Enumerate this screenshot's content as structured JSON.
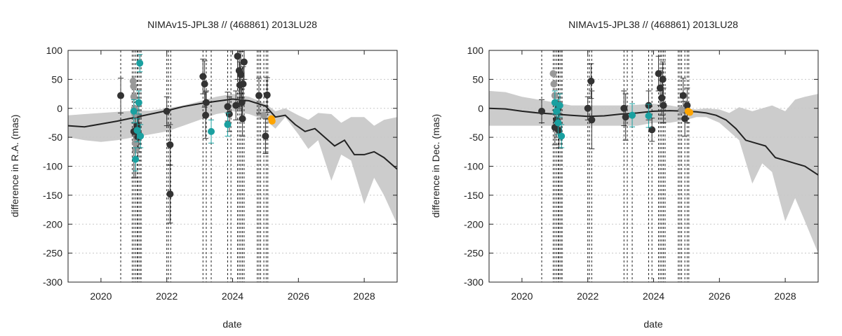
{
  "chart_data": [
    {
      "type": "scatter",
      "title": "NIMAv15-JPL38 // (468861) 2013LU28",
      "xlabel": "date",
      "ylabel": "difference in R.A. (mas)",
      "xlim": [
        2019.0,
        2029.0
      ],
      "ylim": [
        -300,
        100
      ],
      "xticks": [
        2020,
        2022,
        2024,
        2026,
        2028
      ],
      "yticks": [
        100,
        50,
        0,
        -50,
        -100,
        -150,
        -200,
        -250,
        -300
      ],
      "grid": true,
      "colors": {
        "dark": "#333333",
        "gray": "#999999",
        "teal": "#1aa0a0",
        "orange": "#ffa500",
        "band": "#cccccc",
        "curve": "#222222"
      },
      "band": {
        "x": [
          2019.0,
          2019.5,
          2020.0,
          2020.5,
          2021.0,
          2021.5,
          2022.0,
          2022.5,
          2023.0,
          2023.5,
          2024.0,
          2024.5,
          2025.0,
          2025.3,
          2025.6,
          2026.0,
          2026.3,
          2026.6,
          2027.0,
          2027.3,
          2027.6,
          2028.0,
          2028.3,
          2028.6,
          2029.0
        ],
        "upper": [
          -12,
          -10,
          -8,
          -6,
          -4,
          -4,
          0,
          5,
          12,
          20,
          25,
          20,
          8,
          -5,
          0,
          -12,
          -20,
          -8,
          -10,
          -25,
          -15,
          -15,
          -30,
          -20,
          -15
        ],
        "lower": [
          -50,
          -55,
          -58,
          -55,
          -50,
          -45,
          -40,
          -30,
          -20,
          -10,
          -5,
          -10,
          -20,
          -35,
          -15,
          -45,
          -70,
          -55,
          -125,
          -80,
          -90,
          -165,
          -120,
          -150,
          -200
        ]
      },
      "curve": {
        "x": [
          2019.0,
          2019.5,
          2020.0,
          2020.5,
          2021.0,
          2021.5,
          2022.0,
          2022.5,
          2023.0,
          2023.5,
          2024.0,
          2024.5,
          2025.0,
          2025.3,
          2025.6,
          2025.9,
          2026.2,
          2026.5,
          2026.8,
          2027.1,
          2027.4,
          2027.7,
          2028.0,
          2028.3,
          2028.6,
          2029.0
        ],
        "y": [
          -30,
          -32,
          -27,
          -22,
          -16,
          -10,
          -4,
          3,
          8,
          12,
          16,
          13,
          4,
          -15,
          -12,
          -28,
          -40,
          -35,
          -50,
          -65,
          -55,
          -80,
          -80,
          -75,
          -85,
          -105
        ]
      },
      "vlines": [
        2020.6,
        2020.95,
        2021.0,
        2021.05,
        2021.1,
        2021.13,
        2021.18,
        2021.22,
        2022.0,
        2022.05,
        2022.12,
        2023.1,
        2023.2,
        2023.35,
        2023.85,
        2023.95,
        2024.15,
        2024.2,
        2024.25,
        2024.3,
        2024.35,
        2024.75,
        2024.8,
        2024.85,
        2024.95,
        2025.02,
        2025.07
      ],
      "series": [
        {
          "name": "dark",
          "points": [
            {
              "x": 2020.6,
              "y": 22,
              "err": 30
            },
            {
              "x": 2021.0,
              "y": -40,
              "err": 80
            },
            {
              "x": 2021.05,
              "y": -60,
              "err": 60
            },
            {
              "x": 2021.1,
              "y": -30,
              "err": 40
            },
            {
              "x": 2021.12,
              "y": -50,
              "err": 40
            },
            {
              "x": 2021.15,
              "y": -45,
              "err": 30
            },
            {
              "x": 2022.0,
              "y": -5,
              "err": 25
            },
            {
              "x": 2022.1,
              "y": -63,
              "err": 35
            },
            {
              "x": 2022.1,
              "y": -148,
              "err": 50
            },
            {
              "x": 2023.1,
              "y": 55,
              "err": 30
            },
            {
              "x": 2023.15,
              "y": 42,
              "err": 40
            },
            {
              "x": 2023.18,
              "y": -12,
              "err": 40
            },
            {
              "x": 2023.2,
              "y": 10,
              "err": 20
            },
            {
              "x": 2023.85,
              "y": 3,
              "err": 25
            },
            {
              "x": 2023.9,
              "y": -10,
              "err": 30
            },
            {
              "x": 2024.1,
              "y": 5,
              "err": 25
            },
            {
              "x": 2024.15,
              "y": 90,
              "err": 40
            },
            {
              "x": 2024.2,
              "y": 65,
              "err": 40
            },
            {
              "x": 2024.22,
              "y": 40,
              "err": 40
            },
            {
              "x": 2024.25,
              "y": 58,
              "err": 40
            },
            {
              "x": 2024.28,
              "y": 10,
              "err": 30
            },
            {
              "x": 2024.3,
              "y": -18,
              "err": 30
            },
            {
              "x": 2024.32,
              "y": 42,
              "err": 30
            },
            {
              "x": 2024.35,
              "y": 80,
              "err": 30
            },
            {
              "x": 2024.8,
              "y": 22,
              "err": 30
            },
            {
              "x": 2025.0,
              "y": -48,
              "err": 30
            },
            {
              "x": 2025.05,
              "y": 23,
              "err": 30
            }
          ]
        },
        {
          "name": "gray",
          "points": [
            {
              "x": 2020.98,
              "y": 47,
              "err": 0
            },
            {
              "x": 2020.99,
              "y": 38,
              "err": 0
            },
            {
              "x": 2021.0,
              "y": 20,
              "err": 0
            },
            {
              "x": 2021.02,
              "y": 0,
              "err": 0
            },
            {
              "x": 2021.03,
              "y": -10,
              "err": 0
            },
            {
              "x": 2021.04,
              "y": -60,
              "err": 0
            },
            {
              "x": 2021.05,
              "y": -72,
              "err": 0
            },
            {
              "x": 2024.95,
              "y": -12,
              "err": 0
            }
          ]
        },
        {
          "name": "teal",
          "points": [
            {
              "x": 2021.0,
              "y": -5,
              "err": 20
            },
            {
              "x": 2021.05,
              "y": -88,
              "err": 20
            },
            {
              "x": 2021.1,
              "y": -38,
              "err": 20
            },
            {
              "x": 2021.15,
              "y": 10,
              "err": 20
            },
            {
              "x": 2021.18,
              "y": 78,
              "err": 15
            },
            {
              "x": 2021.2,
              "y": -48,
              "err": 20
            },
            {
              "x": 2023.35,
              "y": -40,
              "err": 20
            },
            {
              "x": 2023.85,
              "y": -28,
              "err": 20
            }
          ]
        },
        {
          "name": "orange",
          "points": [
            {
              "x": 2025.18,
              "y": -18,
              "err": 0
            },
            {
              "x": 2025.2,
              "y": -22,
              "err": 0
            }
          ]
        }
      ]
    },
    {
      "type": "scatter",
      "title": "NIMAv15-JPL38 // (468861) 2013LU28",
      "xlabel": "date",
      "ylabel": "difference in Dec. (mas)",
      "xlim": [
        2019.0,
        2029.0
      ],
      "ylim": [
        -300,
        100
      ],
      "xticks": [
        2020,
        2022,
        2024,
        2026,
        2028
      ],
      "yticks": [
        100,
        50,
        0,
        -50,
        -100,
        -150,
        -200,
        -250,
        -300
      ],
      "grid": true,
      "colors": {
        "dark": "#333333",
        "gray": "#999999",
        "teal": "#1aa0a0",
        "orange": "#ffa500",
        "band": "#cccccc",
        "curve": "#222222"
      },
      "band": {
        "x": [
          2019.0,
          2019.5,
          2020.0,
          2020.5,
          2021.0,
          2021.5,
          2022.0,
          2022.5,
          2023.0,
          2023.5,
          2024.0,
          2024.5,
          2025.0,
          2025.3,
          2025.6,
          2026.0,
          2026.3,
          2026.6,
          2027.0,
          2027.3,
          2027.6,
          2028.0,
          2028.3,
          2028.6,
          2029.0
        ],
        "upper": [
          30,
          28,
          20,
          15,
          10,
          5,
          5,
          5,
          5,
          6,
          8,
          5,
          0,
          -2,
          0,
          -2,
          -8,
          2,
          -5,
          0,
          5,
          -5,
          15,
          20,
          25
        ],
        "lower": [
          -30,
          -30,
          -30,
          -30,
          -30,
          -30,
          -30,
          -30,
          -30,
          -30,
          -25,
          -25,
          -20,
          -15,
          -15,
          -25,
          -40,
          -55,
          -130,
          -95,
          -110,
          -195,
          -155,
          -195,
          -250
        ]
      },
      "curve": {
        "x": [
          2019.0,
          2019.5,
          2020.0,
          2020.5,
          2021.0,
          2021.5,
          2022.0,
          2022.5,
          2023.0,
          2023.5,
          2024.0,
          2024.5,
          2025.0,
          2025.3,
          2025.6,
          2025.9,
          2026.2,
          2026.5,
          2026.8,
          2027.1,
          2027.4,
          2027.7,
          2028.0,
          2028.3,
          2028.6,
          2029.0
        ],
        "y": [
          0,
          -1,
          -5,
          -8,
          -10,
          -12,
          -14,
          -13,
          -10,
          -8,
          -5,
          -4,
          -5,
          -6,
          -8,
          -12,
          -20,
          -35,
          -55,
          -60,
          -65,
          -85,
          -90,
          -95,
          -100,
          -115
        ]
      },
      "vlines": [
        2020.6,
        2020.95,
        2021.0,
        2021.05,
        2021.1,
        2021.13,
        2021.18,
        2021.22,
        2022.0,
        2022.05,
        2022.12,
        2023.1,
        2023.2,
        2023.35,
        2023.85,
        2023.95,
        2024.15,
        2024.2,
        2024.25,
        2024.3,
        2024.35,
        2024.75,
        2024.8,
        2024.85,
        2024.95,
        2025.02,
        2025.07
      ],
      "series": [
        {
          "name": "dark",
          "points": [
            {
              "x": 2020.6,
              "y": -5,
              "err": 20
            },
            {
              "x": 2021.0,
              "y": -33,
              "err": 30
            },
            {
              "x": 2021.05,
              "y": -20,
              "err": 30
            },
            {
              "x": 2021.1,
              "y": 0,
              "err": 20
            },
            {
              "x": 2021.12,
              "y": -38,
              "err": 30
            },
            {
              "x": 2022.0,
              "y": 0,
              "err": 20
            },
            {
              "x": 2022.1,
              "y": 47,
              "err": 30
            },
            {
              "x": 2022.12,
              "y": -20,
              "err": 50
            },
            {
              "x": 2023.1,
              "y": 0,
              "err": 30
            },
            {
              "x": 2023.15,
              "y": -15,
              "err": 40
            },
            {
              "x": 2023.85,
              "y": 5,
              "err": 25
            },
            {
              "x": 2023.95,
              "y": -37,
              "err": 20
            },
            {
              "x": 2024.15,
              "y": 60,
              "err": 30
            },
            {
              "x": 2024.2,
              "y": 35,
              "err": 30
            },
            {
              "x": 2024.25,
              "y": 18,
              "err": 30
            },
            {
              "x": 2024.28,
              "y": 50,
              "err": 30
            },
            {
              "x": 2024.3,
              "y": 5,
              "err": 30
            },
            {
              "x": 2024.9,
              "y": 22,
              "err": 30
            },
            {
              "x": 2024.95,
              "y": -18,
              "err": 30
            },
            {
              "x": 2025.02,
              "y": 5,
              "err": 30
            }
          ]
        },
        {
          "name": "gray",
          "points": [
            {
              "x": 2020.95,
              "y": 60,
              "err": 0
            },
            {
              "x": 2020.97,
              "y": 42,
              "err": 0
            },
            {
              "x": 2021.0,
              "y": 22,
              "err": 0
            },
            {
              "x": 2024.85,
              "y": -3,
              "err": 0
            }
          ]
        },
        {
          "name": "teal",
          "points": [
            {
              "x": 2021.0,
              "y": 10,
              "err": 20
            },
            {
              "x": 2021.05,
              "y": -5,
              "err": 20
            },
            {
              "x": 2021.1,
              "y": -25,
              "err": 20
            },
            {
              "x": 2021.15,
              "y": 5,
              "err": 20
            },
            {
              "x": 2021.2,
              "y": -48,
              "err": 20
            },
            {
              "x": 2023.35,
              "y": -12,
              "err": 20
            },
            {
              "x": 2023.85,
              "y": -13,
              "err": 20
            }
          ]
        },
        {
          "name": "orange",
          "points": [
            {
              "x": 2025.05,
              "y": -5,
              "err": 0
            },
            {
              "x": 2025.1,
              "y": -7,
              "err": 0
            }
          ]
        }
      ]
    }
  ]
}
